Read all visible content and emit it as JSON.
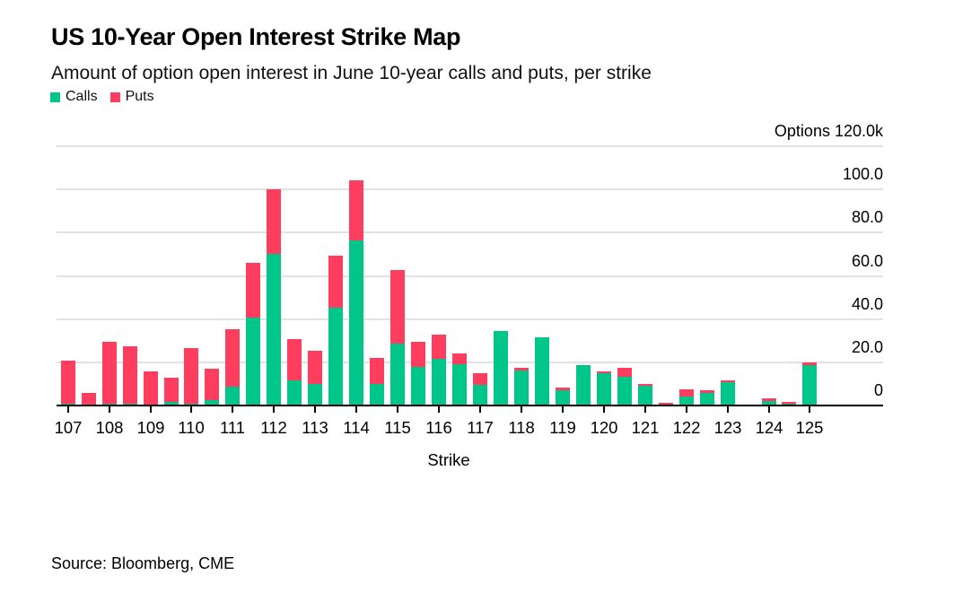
{
  "header": {
    "title": "US 10-Year Open Interest Strike Map",
    "subtitle": "Amount of option open interest in June 10-year calls and puts, per strike"
  },
  "legend": {
    "items": [
      {
        "label": "Calls",
        "color": "#00c689"
      },
      {
        "label": "Puts",
        "color": "#ff3e5f"
      }
    ]
  },
  "footer": {
    "source": "Source: Bloomberg, CME"
  },
  "colors": {
    "calls": "#00c689",
    "puts": "#ff3e5f",
    "gridline": "#e2e2e2",
    "axis": "#000000",
    "background": "#ffffff"
  },
  "chart_data": {
    "type": "bar",
    "stacked": true,
    "title": "US 10-Year Open Interest Strike Map",
    "subtitle": "Amount of option open interest in June 10-year calls and puts, per strike",
    "xlabel": "Strike",
    "y_axis_header": "Options 120.0k",
    "y_unit": "thousands of option contracts",
    "ylim": [
      0,
      120
    ],
    "yticks": [
      0,
      20,
      40,
      60,
      80,
      100,
      120
    ],
    "ytick_labels": [
      "0",
      "20.0",
      "40.0",
      "60.0",
      "80.0",
      "100.0",
      "Options 120.0k"
    ],
    "xticks": [
      107,
      108,
      109,
      110,
      111,
      112,
      113,
      114,
      115,
      116,
      117,
      118,
      119,
      120,
      121,
      122,
      123,
      124,
      125
    ],
    "x": [
      107,
      107.5,
      108,
      108.5,
      109,
      109.5,
      110,
      110.5,
      111,
      111.5,
      112,
      112.5,
      113,
      113.5,
      114,
      114.5,
      115,
      115.5,
      116,
      116.5,
      117,
      117.5,
      118,
      118.5,
      119,
      119.5,
      120,
      120.5,
      121,
      121.5,
      122,
      122.5,
      123,
      123.5,
      124,
      124.5,
      125
    ],
    "series": [
      {
        "name": "Calls",
        "color": "#00c689",
        "values": [
          1.4,
          0.3,
          1.1,
          1.4,
          1.0,
          2.1,
          1.1,
          3.1,
          9.0,
          41.0,
          70.5,
          12.1,
          10.2,
          45.8,
          77.0,
          10.4,
          29.2,
          18.3,
          21.8,
          19.4,
          10.0,
          34.8,
          16.5,
          31.8,
          7.4,
          19.2,
          15.3,
          13.5,
          9.5,
          0.7,
          4.5,
          6.3,
          11.1,
          0.4,
          2.4,
          1.1,
          19.0
        ]
      },
      {
        "name": "Puts",
        "color": "#ff3e5f",
        "values": [
          19.8,
          5.8,
          28.7,
          26.4,
          15.2,
          11.4,
          25.7,
          14.7,
          26.4,
          25.2,
          30.0,
          19.1,
          15.2,
          24.2,
          28.0,
          12.2,
          34.0,
          11.6,
          11.1,
          4.9,
          5.6,
          0,
          1.4,
          0,
          1.3,
          0,
          1.0,
          4.3,
          1.0,
          0.7,
          3.2,
          1.1,
          1.0,
          0.6,
          1.3,
          1.0,
          1.1
        ]
      }
    ],
    "grid": "horizontal",
    "legend_position": "top-left"
  }
}
